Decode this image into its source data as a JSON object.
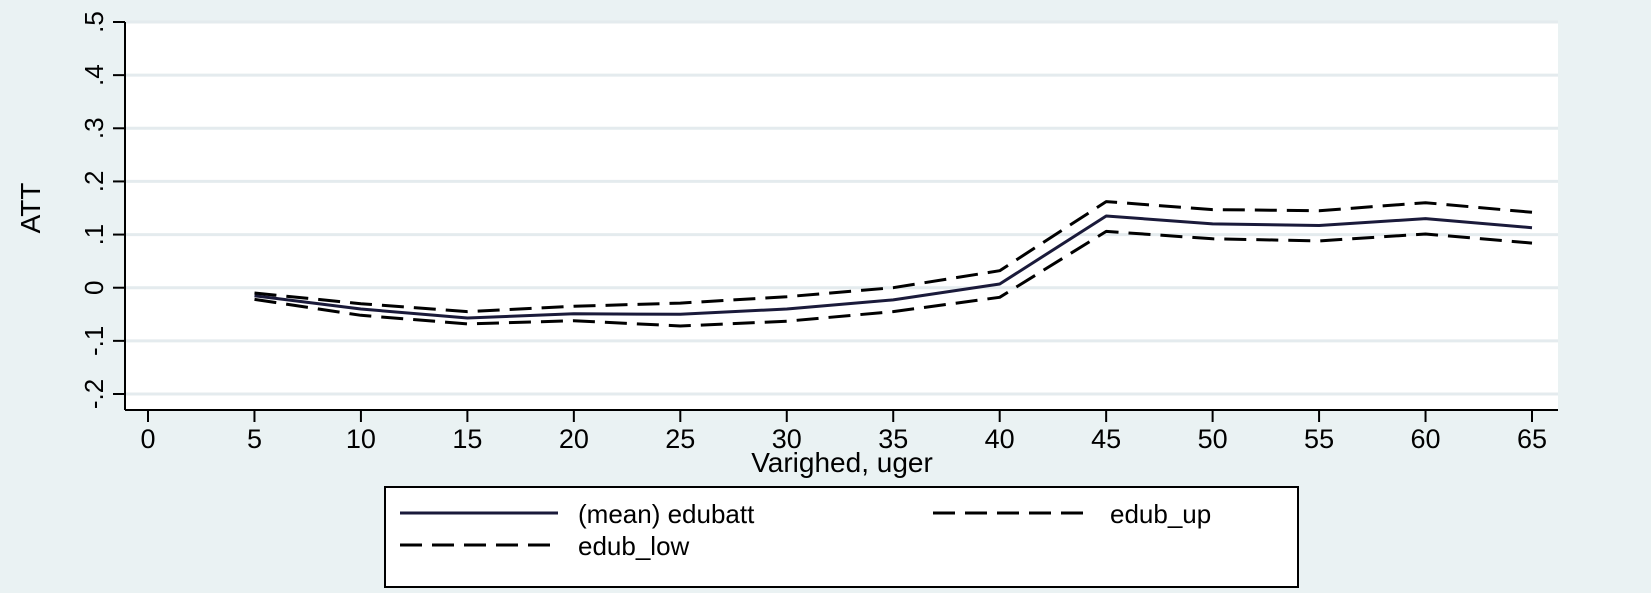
{
  "chart_data": {
    "type": "line",
    "ylabel": "ATT",
    "xlabel": "Varighed, uger",
    "xlim": [
      0,
      65
    ],
    "ylim": [
      -0.2,
      0.5
    ],
    "x_ticks": [
      0,
      5,
      10,
      15,
      20,
      25,
      30,
      35,
      40,
      45,
      50,
      55,
      60,
      65
    ],
    "x_tick_labels": [
      "0",
      "5",
      "10",
      "15",
      "20",
      "25",
      "30",
      "35",
      "40",
      "45",
      "50",
      "55",
      "60",
      "65"
    ],
    "y_ticks": [
      -0.2,
      -0.1,
      0,
      0.1,
      0.2,
      0.3,
      0.4,
      0.5
    ],
    "y_tick_labels": [
      "-.2",
      "-.1",
      "0",
      ".1",
      ".2",
      ".3",
      ".4",
      ".5"
    ],
    "grid": true,
    "legend_position": "bottom",
    "x": [
      5,
      10,
      15,
      20,
      25,
      30,
      35,
      40,
      45,
      50,
      55,
      60,
      65
    ],
    "series": [
      {
        "name": "(mean) edubatt",
        "style": "solid",
        "color": "#1a1a3a",
        "values": [
          -0.015,
          -0.04,
          -0.057,
          -0.049,
          -0.05,
          -0.04,
          -0.023,
          0.007,
          0.135,
          0.12,
          0.117,
          0.13,
          0.113
        ]
      },
      {
        "name": "edub_up",
        "style": "dashed",
        "color": "#000000",
        "values": [
          -0.01,
          -0.03,
          -0.045,
          -0.035,
          -0.029,
          -0.017,
          0.0,
          0.032,
          0.162,
          0.147,
          0.145,
          0.16,
          0.142
        ]
      },
      {
        "name": "edub_low",
        "style": "dashed",
        "color": "#000000",
        "values": [
          -0.022,
          -0.052,
          -0.068,
          -0.062,
          -0.072,
          -0.063,
          -0.045,
          -0.018,
          0.106,
          0.092,
          0.088,
          0.101,
          0.084
        ]
      }
    ]
  }
}
